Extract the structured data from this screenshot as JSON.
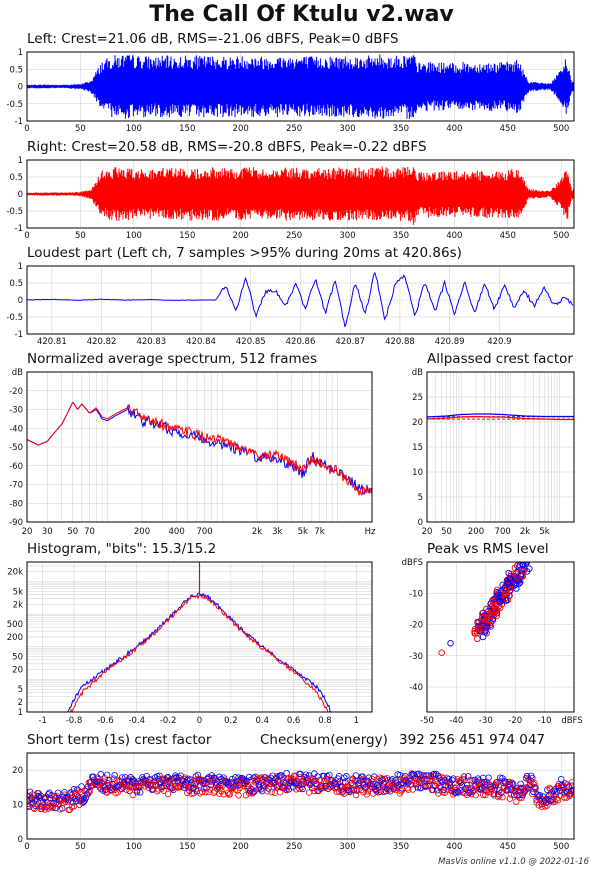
{
  "title": "The Call Of Ktulu v2.wav",
  "colors": {
    "left": "#0000ff",
    "right": "#ff0000",
    "grid": "#cccccc",
    "mix": "#8a1d7a"
  },
  "panels": {
    "left_waveform": {
      "title": "Left: Crest=21.06 dB, RMS=-21.06 dBFS, Peak=0 dBFS"
    },
    "right_waveform": {
      "title": "Right: Crest=20.58 dB, RMS=-20.8 dBFS, Peak=-0.22 dBFS"
    },
    "loudest": {
      "title": "Loudest part (Left ch, 7 samples >95% during 20ms at 420.86s)"
    },
    "spectrum": {
      "title": "Normalized average spectrum, 512 frames"
    },
    "allpassed": {
      "title": "Allpassed crest factor"
    },
    "histogram": {
      "title": "Histogram, \"bits\": 15.3/15.2"
    },
    "peak_rms": {
      "title": "Peak vs RMS level"
    },
    "crest": {
      "title": "Short term (1s) crest factor"
    },
    "checksum": {
      "label": "Checksum(energy)",
      "value": "392 256 451 974 047"
    }
  },
  "footer": "MasVis online v1.1.0 @ 2022-01-16",
  "chart_data": [
    {
      "type": "area",
      "panel": "left_waveform",
      "channel": "Left",
      "x_ticks": [
        "0",
        "50",
        "100",
        "150",
        "200",
        "250",
        "300",
        "350",
        "400",
        "450",
        "500"
      ],
      "y_ticks": [
        "1",
        "0.5",
        "0",
        "-0.5",
        "-1"
      ],
      "xlim": [
        0,
        512
      ],
      "ylim": [
        -1,
        1
      ],
      "envelope": {
        "x": [
          0,
          10,
          20,
          30,
          40,
          50,
          60,
          70,
          80,
          90,
          100,
          110,
          120,
          130,
          140,
          150,
          160,
          170,
          180,
          190,
          200,
          210,
          220,
          230,
          240,
          250,
          260,
          270,
          280,
          290,
          300,
          310,
          320,
          330,
          340,
          350,
          360,
          362,
          365,
          370,
          380,
          390,
          400,
          410,
          420,
          430,
          440,
          450,
          460,
          465,
          470,
          480,
          490,
          500,
          505,
          510
        ],
        "amp": [
          0.05,
          0.06,
          0.06,
          0.05,
          0.06,
          0.08,
          0.18,
          0.75,
          0.9,
          0.95,
          0.92,
          0.9,
          0.88,
          0.9,
          0.88,
          0.92,
          0.9,
          0.9,
          0.9,
          0.88,
          0.9,
          0.92,
          0.88,
          0.9,
          0.9,
          0.92,
          0.9,
          0.88,
          0.9,
          0.9,
          0.92,
          0.9,
          0.9,
          0.95,
          0.9,
          0.92,
          0.95,
          1.0,
          0.7,
          0.7,
          0.72,
          0.7,
          0.68,
          0.72,
          0.7,
          0.72,
          0.7,
          0.72,
          0.8,
          0.45,
          0.15,
          0.12,
          0.1,
          0.5,
          0.9,
          0.15
        ]
      }
    },
    {
      "type": "area",
      "panel": "right_waveform",
      "channel": "Right",
      "x_ticks": [
        "0",
        "50",
        "100",
        "150",
        "200",
        "250",
        "300",
        "350",
        "400",
        "450",
        "500"
      ],
      "y_ticks": [
        "1",
        "0.5",
        "0",
        "-0.5",
        "-1"
      ],
      "xlim": [
        0,
        512
      ],
      "ylim": [
        -1,
        1
      ],
      "envelope": {
        "x": [
          0,
          10,
          20,
          30,
          40,
          50,
          60,
          70,
          80,
          90,
          100,
          110,
          120,
          130,
          140,
          150,
          160,
          170,
          180,
          190,
          200,
          210,
          220,
          230,
          240,
          250,
          260,
          270,
          280,
          290,
          300,
          310,
          320,
          330,
          340,
          350,
          360,
          362,
          365,
          370,
          380,
          390,
          400,
          410,
          420,
          430,
          440,
          450,
          460,
          465,
          470,
          480,
          490,
          500,
          505,
          510
        ],
        "amp": [
          0.04,
          0.05,
          0.05,
          0.05,
          0.05,
          0.07,
          0.15,
          0.7,
          0.78,
          0.8,
          0.78,
          0.76,
          0.75,
          0.78,
          0.76,
          0.8,
          0.78,
          0.78,
          0.8,
          0.76,
          0.78,
          0.8,
          0.76,
          0.78,
          0.78,
          0.8,
          0.78,
          0.76,
          0.78,
          0.78,
          0.8,
          0.78,
          0.78,
          0.82,
          0.78,
          0.8,
          0.82,
          0.95,
          0.65,
          0.68,
          0.7,
          0.7,
          0.68,
          0.7,
          0.7,
          0.72,
          0.7,
          0.72,
          0.78,
          0.45,
          0.15,
          0.12,
          0.1,
          0.5,
          0.9,
          0.15
        ]
      }
    },
    {
      "type": "line",
      "panel": "loudest",
      "x_ticks": [
        "420.81",
        "420.82",
        "420.83",
        "420.84",
        "420.85",
        "420.86",
        "420.87",
        "420.88",
        "420.89",
        "420.9"
      ],
      "y_ticks": [
        "1",
        "0.5",
        "0",
        "-0.5",
        "-1"
      ],
      "xlim": [
        420.805,
        420.915
      ],
      "ylim": [
        -1,
        1
      ],
      "x": [
        420.805,
        420.81,
        420.815,
        420.82,
        420.825,
        420.83,
        420.835,
        420.84,
        420.843,
        420.845,
        420.847,
        420.849,
        420.851,
        420.853,
        420.855,
        420.857,
        420.859,
        420.861,
        420.863,
        420.865,
        420.867,
        420.869,
        420.871,
        420.873,
        420.875,
        420.877,
        420.879,
        420.881,
        420.883,
        420.885,
        420.887,
        420.889,
        420.891,
        420.893,
        420.895,
        420.897,
        420.899,
        420.901,
        420.903,
        420.905,
        420.907,
        420.909,
        420.911,
        420.913,
        420.915
      ],
      "y": [
        0,
        0.02,
        -0.01,
        0.02,
        0.0,
        0.01,
        -0.01,
        0.0,
        0.0,
        0.45,
        -0.35,
        0.7,
        -0.5,
        0.25,
        0.3,
        -0.2,
        0.5,
        -0.3,
        0.65,
        -0.4,
        0.6,
        -0.85,
        0.55,
        -0.4,
        0.85,
        -0.6,
        0.45,
        0.7,
        -0.5,
        0.55,
        -0.35,
        0.5,
        -0.45,
        0.55,
        -0.4,
        0.5,
        -0.3,
        0.45,
        -0.25,
        0.3,
        -0.2,
        0.35,
        -0.15,
        0.05,
        -0.15
      ]
    },
    {
      "type": "line",
      "panel": "spectrum",
      "x_ticks": [
        "20",
        "30",
        "50",
        "70",
        "200",
        "400",
        "700",
        "2k",
        "3k",
        "5k",
        "7k",
        "Hz"
      ],
      "y_ticks": [
        "dB",
        "-20",
        "-30",
        "-40",
        "-50",
        "-60",
        "-70",
        "-80",
        "-90"
      ],
      "xlim": [
        20,
        20000
      ],
      "ylim": [
        -90,
        -10
      ],
      "series": [
        {
          "name": "Left",
          "x": [
            20,
            25,
            30,
            35,
            40,
            45,
            50,
            55,
            60,
            70,
            80,
            90,
            100,
            120,
            150,
            180,
            200,
            250,
            300,
            400,
            500,
            700,
            1000,
            1500,
            2000,
            3000,
            4000,
            5000,
            6000,
            7000,
            8000,
            10000,
            12000,
            14000,
            16000,
            18000,
            20000
          ],
          "y": [
            -46,
            -49,
            -47,
            -42,
            -38,
            -32,
            -26,
            -30,
            -27,
            -32,
            -30,
            -35,
            -36,
            -33,
            -30,
            -33,
            -36,
            -37,
            -39,
            -42,
            -43,
            -46,
            -48,
            -52,
            -55,
            -56,
            -60,
            -64,
            -55,
            -58,
            -60,
            -62,
            -66,
            -70,
            -73,
            -72,
            -74
          ]
        },
        {
          "name": "Right",
          "x": [
            20,
            25,
            30,
            35,
            40,
            45,
            50,
            55,
            60,
            70,
            80,
            90,
            100,
            120,
            150,
            180,
            200,
            250,
            300,
            400,
            500,
            700,
            1000,
            1500,
            2000,
            3000,
            4000,
            5000,
            6000,
            7000,
            8000,
            10000,
            12000,
            14000,
            16000,
            18000,
            20000
          ],
          "y": [
            -46,
            -49,
            -47,
            -42,
            -38,
            -32,
            -26,
            -30,
            -27,
            -32,
            -29,
            -34,
            -35,
            -32,
            -29,
            -32,
            -35,
            -36,
            -38,
            -41,
            -42,
            -45,
            -47,
            -51,
            -54,
            -55,
            -59,
            -62,
            -56,
            -59,
            -61,
            -63,
            -67,
            -71,
            -74,
            -73,
            -75
          ]
        }
      ]
    },
    {
      "type": "line",
      "panel": "allpassed",
      "x_ticks": [
        "20",
        "50",
        "200",
        "700",
        "2k",
        "5k"
      ],
      "y_ticks": [
        "dB",
        "25",
        "20",
        "15",
        "10",
        "5",
        "0"
      ],
      "xlim": [
        20,
        20000
      ],
      "ylim": [
        0,
        30
      ],
      "series": [
        {
          "name": "Left",
          "x": [
            20,
            50,
            100,
            200,
            400,
            700,
            1000,
            2000,
            5000,
            10000,
            20000
          ],
          "y": [
            21.0,
            21.2,
            21.5,
            21.6,
            21.6,
            21.5,
            21.4,
            21.2,
            21.1,
            21.1,
            21.1
          ]
        },
        {
          "name": "Right",
          "x": [
            20,
            50,
            100,
            200,
            400,
            700,
            1000,
            2000,
            5000,
            10000,
            20000
          ],
          "y": [
            20.6,
            20.8,
            21.0,
            21.1,
            21.0,
            21.0,
            20.9,
            20.7,
            20.6,
            20.5,
            20.5
          ]
        }
      ],
      "reference_lines": [
        21.06,
        20.58
      ]
    },
    {
      "type": "line",
      "panel": "histogram",
      "x_ticks": [
        "-1",
        "-0.8",
        "-0.6",
        "-0.4",
        "-0.2",
        "0",
        "0.2",
        "0.4",
        "0.6",
        "0.8",
        "1"
      ],
      "y_ticks": [
        "20k",
        "5k",
        "2k",
        "500",
        "200",
        "50",
        "20",
        "5",
        "2",
        "1"
      ],
      "xlim": [
        -1.1,
        1.1
      ],
      "ylim_log10": [
        0,
        4.6
      ],
      "series": [
        {
          "name": "Left",
          "x": [
            -0.84,
            -0.8,
            -0.75,
            -0.7,
            -0.6,
            -0.5,
            -0.4,
            -0.3,
            -0.2,
            -0.1,
            -0.05,
            0,
            0.05,
            0.1,
            0.2,
            0.3,
            0.4,
            0.5,
            0.6,
            0.7,
            0.75,
            0.8,
            0.84
          ],
          "log10y": [
            0,
            0.4,
            0.75,
            0.95,
            1.3,
            1.65,
            2.0,
            2.4,
            2.85,
            3.35,
            3.55,
            3.6,
            3.55,
            3.35,
            2.85,
            2.4,
            2.0,
            1.65,
            1.3,
            0.95,
            0.75,
            0.4,
            0
          ]
        },
        {
          "name": "Right",
          "x": [
            -0.82,
            -0.78,
            -0.73,
            -0.68,
            -0.6,
            -0.5,
            -0.4,
            -0.3,
            -0.2,
            -0.1,
            -0.05,
            0,
            0.05,
            0.1,
            0.2,
            0.3,
            0.4,
            0.5,
            0.6,
            0.68,
            0.73,
            0.78,
            0.82
          ],
          "log10y": [
            0,
            0.35,
            0.7,
            0.9,
            1.25,
            1.6,
            1.95,
            2.35,
            2.8,
            3.3,
            3.5,
            3.55,
            3.5,
            3.3,
            2.8,
            2.35,
            1.95,
            1.6,
            1.25,
            0.9,
            0.7,
            0.35,
            0
          ]
        }
      ]
    },
    {
      "type": "scatter",
      "panel": "peak_rms",
      "x_ticks": [
        "-50",
        "-40",
        "-30",
        "-20",
        "-10",
        "dBFS"
      ],
      "y_ticks": [
        "dBFS",
        "-10",
        "-20",
        "-30",
        "-40"
      ],
      "xlim": [
        -50,
        0
      ],
      "ylim": [
        -48,
        0
      ],
      "cluster": {
        "x_range": [
          -33,
          -17
        ],
        "y_range": [
          -23,
          -0.5
        ]
      },
      "outliers": [
        {
          "series": "Left",
          "x": -42,
          "y": -26
        },
        {
          "series": "Right",
          "x": -45,
          "y": -29
        }
      ]
    },
    {
      "type": "scatter",
      "panel": "crest",
      "x_ticks": [
        "0",
        "50",
        "100",
        "150",
        "200",
        "250",
        "300",
        "350",
        "400",
        "450",
        "500"
      ],
      "y_ticks": [
        "20",
        "10",
        "0"
      ],
      "xlim": [
        0,
        512
      ],
      "ylim": [
        0,
        25
      ],
      "trend": {
        "x": [
          0,
          20,
          40,
          50,
          55,
          60,
          70,
          100,
          150,
          200,
          250,
          300,
          350,
          360,
          400,
          450,
          460,
          470,
          480,
          500,
          510
        ],
        "y": [
          11.5,
          11,
          10.8,
          13,
          12.5,
          17,
          16,
          15.5,
          16,
          15.5,
          16.5,
          15.5,
          16,
          17,
          15.5,
          15,
          13,
          17,
          11.5,
          14.5,
          15
        ]
      }
    }
  ]
}
